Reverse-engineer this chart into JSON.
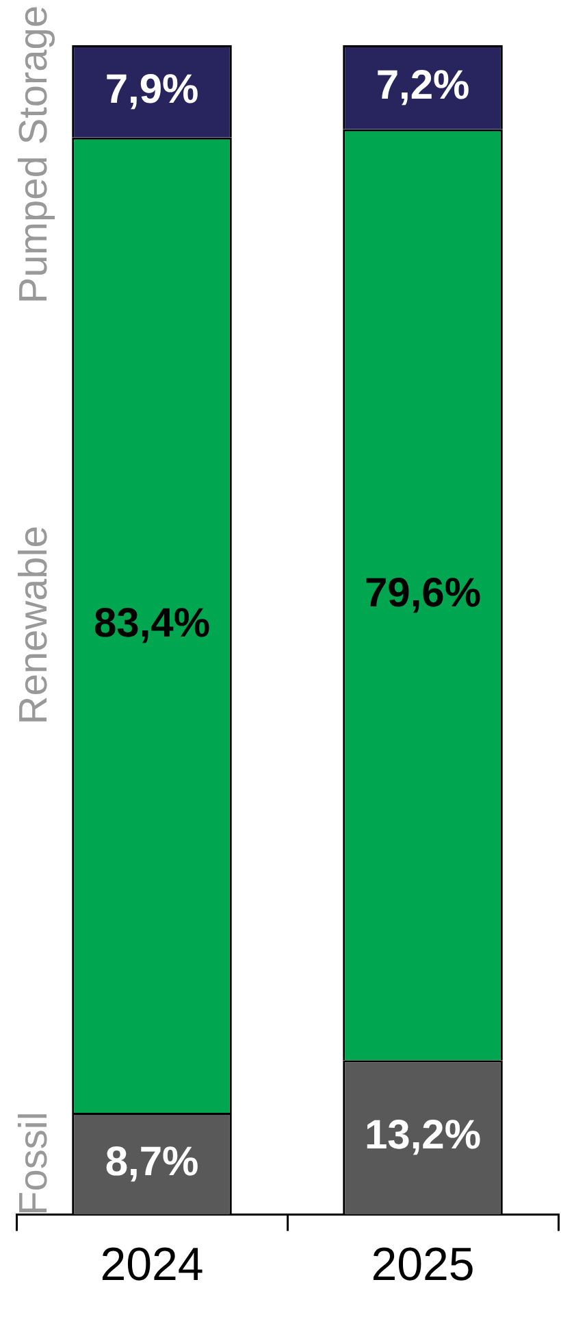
{
  "chart_data": {
    "type": "bar",
    "stacked": true,
    "categories": [
      "2024",
      "2025"
    ],
    "series": [
      {
        "name": "Fossil",
        "color": "#595959",
        "values": [
          8.7,
          13.2
        ],
        "value_labels": [
          "8,7%",
          "13,2%"
        ]
      },
      {
        "name": "Renewable",
        "color": "#00a650",
        "values": [
          83.4,
          79.6
        ],
        "value_labels": [
          "83,4%",
          "79,6%"
        ]
      },
      {
        "name": "Pumped Storage",
        "color": "#27245e",
        "values": [
          7.9,
          7.2
        ],
        "value_labels": [
          "7,9%",
          "7,2%"
        ]
      }
    ],
    "ylim": [
      0,
      100
    ],
    "tick_labels": "x",
    "legend": false,
    "grid": false
  }
}
